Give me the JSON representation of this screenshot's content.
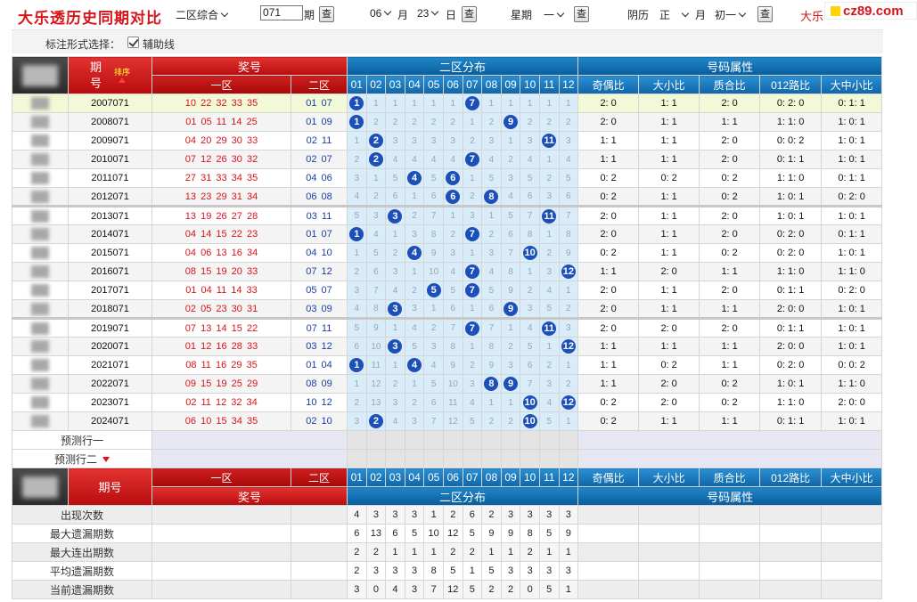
{
  "header": {
    "site_title": "大乐透历史同期对比",
    "zone_select": "二区综合",
    "period_value": "071",
    "period_label": "期",
    "query_label": "查",
    "month_value": "06",
    "month_label": "月",
    "day_value": "23",
    "day_label": "日",
    "weekday_prefix": "星期",
    "weekday_value": "一",
    "lunar_prefix": "阴历",
    "lunar_month": "正",
    "lunar_month_label": "月",
    "lunar_day": "初一",
    "red_link": "大乐",
    "logo_text": "cz89.com"
  },
  "options": {
    "label": "标注形式选择：",
    "aux_line_label": "辅助线"
  },
  "table": {
    "period_col": "期号",
    "period_col_a": "期",
    "period_col_b": "号",
    "sort_label": "排序",
    "prize_header": "奖号",
    "zone1_header": "一区",
    "zone2_header": "二区",
    "dist_header": "二区分布",
    "attr_header": "号码属性",
    "dist_cols": [
      "01",
      "02",
      "03",
      "04",
      "05",
      "06",
      "07",
      "08",
      "09",
      "10",
      "11",
      "12"
    ],
    "attr_cols": [
      "奇偶比",
      "大小比",
      "质合比",
      "012路比",
      "大中小比"
    ],
    "rows": [
      {
        "issue": "2007071",
        "zone1": "10 22 32 33 35",
        "zone2": "01 07",
        "dist": [
          "1",
          "1",
          "1",
          "1",
          "1",
          "1",
          "7",
          "1",
          "1",
          "1",
          "1",
          "1"
        ],
        "hits": [
          1,
          7
        ],
        "attrs": [
          "2: 0",
          "1: 1",
          "2: 0",
          "0: 2: 0",
          "0: 1: 1"
        ]
      },
      {
        "issue": "2008071",
        "zone1": "01 05 11 14 25",
        "zone2": "01 09",
        "dist": [
          "1",
          "2",
          "2",
          "2",
          "2",
          "2",
          "1",
          "2",
          "9",
          "2",
          "2",
          "2"
        ],
        "hits": [
          1,
          9
        ],
        "attrs": [
          "2: 0",
          "1: 1",
          "1: 1",
          "1: 1: 0",
          "1: 0: 1"
        ]
      },
      {
        "issue": "2009071",
        "zone1": "04 20 29 30 33",
        "zone2": "02 11",
        "dist": [
          "1",
          "2",
          "3",
          "3",
          "3",
          "3",
          "2",
          "3",
          "1",
          "3",
          "11",
          "3"
        ],
        "hits": [
          2,
          11
        ],
        "attrs": [
          "1: 1",
          "1: 1",
          "2: 0",
          "0: 0: 2",
          "1: 0: 1"
        ]
      },
      {
        "issue": "2010071",
        "zone1": "07 12 26 30 32",
        "zone2": "02 07",
        "dist": [
          "2",
          "2",
          "4",
          "4",
          "4",
          "4",
          "7",
          "4",
          "2",
          "4",
          "1",
          "4"
        ],
        "hits": [
          2,
          7
        ],
        "attrs": [
          "1: 1",
          "1: 1",
          "2: 0",
          "0: 1: 1",
          "1: 0: 1"
        ]
      },
      {
        "issue": "2011071",
        "zone1": "27 31 33 34 35",
        "zone2": "04 06",
        "dist": [
          "3",
          "1",
          "5",
          "4",
          "5",
          "6",
          "1",
          "5",
          "3",
          "5",
          "2",
          "5"
        ],
        "hits": [
          4,
          6
        ],
        "attrs": [
          "0: 2",
          "0: 2",
          "0: 2",
          "1: 1: 0",
          "0: 1: 1"
        ]
      },
      {
        "issue": "2012071",
        "zone1": "13 23 29 31 34",
        "zone2": "06 08",
        "dist": [
          "4",
          "2",
          "6",
          "1",
          "6",
          "6",
          "2",
          "8",
          "4",
          "6",
          "3",
          "6"
        ],
        "hits": [
          6,
          8
        ],
        "attrs": [
          "0: 2",
          "1: 1",
          "0: 2",
          "1: 0: 1",
          "0: 2: 0"
        ]
      },
      {
        "issue": "2013071",
        "zone1": "13 19 26 27 28",
        "zone2": "03 11",
        "dist": [
          "5",
          "3",
          "3",
          "2",
          "7",
          "1",
          "3",
          "1",
          "5",
          "7",
          "11",
          "7"
        ],
        "hits": [
          3,
          11
        ],
        "attrs": [
          "2: 0",
          "1: 1",
          "2: 0",
          "1: 0: 1",
          "1: 0: 1"
        ]
      },
      {
        "issue": "2014071",
        "zone1": "04 14 15 22 23",
        "zone2": "01 07",
        "dist": [
          "1",
          "4",
          "1",
          "3",
          "8",
          "2",
          "7",
          "2",
          "6",
          "8",
          "1",
          "8"
        ],
        "hits": [
          1,
          7
        ],
        "attrs": [
          "2: 0",
          "1: 1",
          "2: 0",
          "0: 2: 0",
          "0: 1: 1"
        ]
      },
      {
        "issue": "2015071",
        "zone1": "04 06 13 16 34",
        "zone2": "04 10",
        "dist": [
          "1",
          "5",
          "2",
          "4",
          "9",
          "3",
          "1",
          "3",
          "7",
          "10",
          "2",
          "9"
        ],
        "hits": [
          4,
          10
        ],
        "attrs": [
          "0: 2",
          "1: 1",
          "0: 2",
          "0: 2: 0",
          "1: 0: 1"
        ]
      },
      {
        "issue": "2016071",
        "zone1": "08 15 19 20 33",
        "zone2": "07 12",
        "dist": [
          "2",
          "6",
          "3",
          "1",
          "10",
          "4",
          "7",
          "4",
          "8",
          "1",
          "3",
          "12"
        ],
        "hits": [
          7,
          12
        ],
        "attrs": [
          "1: 1",
          "2: 0",
          "1: 1",
          "1: 1: 0",
          "1: 1: 0"
        ]
      },
      {
        "issue": "2017071",
        "zone1": "01 04 11 14 33",
        "zone2": "05 07",
        "dist": [
          "3",
          "7",
          "4",
          "2",
          "5",
          "5",
          "7",
          "5",
          "9",
          "2",
          "4",
          "1"
        ],
        "hits": [
          5,
          7
        ],
        "attrs": [
          "2: 0",
          "1: 1",
          "2: 0",
          "0: 1: 1",
          "0: 2: 0"
        ]
      },
      {
        "issue": "2018071",
        "zone1": "02 05 23 30 31",
        "zone2": "03 09",
        "dist": [
          "4",
          "8",
          "3",
          "3",
          "1",
          "6",
          "1",
          "6",
          "9",
          "3",
          "5",
          "2"
        ],
        "hits": [
          3,
          9
        ],
        "attrs": [
          "2: 0",
          "1: 1",
          "1: 1",
          "2: 0: 0",
          "1: 0: 1"
        ]
      },
      {
        "issue": "2019071",
        "zone1": "07 13 14 15 22",
        "zone2": "07 11",
        "dist": [
          "5",
          "9",
          "1",
          "4",
          "2",
          "7",
          "7",
          "7",
          "1",
          "4",
          "11",
          "3"
        ],
        "hits": [
          7,
          11
        ],
        "attrs": [
          "2: 0",
          "2: 0",
          "2: 0",
          "0: 1: 1",
          "1: 0: 1"
        ]
      },
      {
        "issue": "2020071",
        "zone1": "01 12 16 28 33",
        "zone2": "03 12",
        "dist": [
          "6",
          "10",
          "3",
          "5",
          "3",
          "8",
          "1",
          "8",
          "2",
          "5",
          "1",
          "12"
        ],
        "hits": [
          3,
          12
        ],
        "attrs": [
          "1: 1",
          "1: 1",
          "1: 1",
          "2: 0: 0",
          "1: 0: 1"
        ]
      },
      {
        "issue": "2021071",
        "zone1": "08 11 16 29 35",
        "zone2": "01 04",
        "dist": [
          "1",
          "11",
          "1",
          "4",
          "4",
          "9",
          "2",
          "9",
          "3",
          "6",
          "2",
          "1"
        ],
        "hits": [
          1,
          4
        ],
        "attrs": [
          "1: 1",
          "0: 2",
          "1: 1",
          "0: 2: 0",
          "0: 0: 2"
        ]
      },
      {
        "issue": "2022071",
        "zone1": "09 15 19 25 29",
        "zone2": "08 09",
        "dist": [
          "1",
          "12",
          "2",
          "1",
          "5",
          "10",
          "3",
          "8",
          "9",
          "7",
          "3",
          "2"
        ],
        "hits": [
          8,
          9
        ],
        "attrs": [
          "1: 1",
          "2: 0",
          "0: 2",
          "1: 0: 1",
          "1: 1: 0"
        ]
      },
      {
        "issue": "2023071",
        "zone1": "02 11 12 32 34",
        "zone2": "10 12",
        "dist": [
          "2",
          "13",
          "3",
          "2",
          "6",
          "11",
          "4",
          "1",
          "1",
          "10",
          "4",
          "12"
        ],
        "hits": [
          10,
          12
        ],
        "attrs": [
          "0: 2",
          "2: 0",
          "0: 2",
          "1: 1: 0",
          "2: 0: 0"
        ]
      },
      {
        "issue": "2024071",
        "zone1": "06 10 15 34 35",
        "zone2": "02 10",
        "dist": [
          "3",
          "2",
          "4",
          "3",
          "7",
          "12",
          "5",
          "2",
          "2",
          "10",
          "5",
          "1"
        ],
        "hits": [
          2,
          10
        ],
        "attrs": [
          "0: 2",
          "1: 1",
          "1: 1",
          "0: 1: 1",
          "1: 0: 1"
        ]
      }
    ],
    "predict_rows": [
      "预测行一",
      "预测行二"
    ],
    "stats": [
      {
        "label": "出现次数",
        "values": [
          "4",
          "3",
          "3",
          "3",
          "1",
          "2",
          "6",
          "2",
          "3",
          "3",
          "3",
          "3"
        ]
      },
      {
        "label": "最大遗漏期数",
        "values": [
          "6",
          "13",
          "6",
          "5",
          "10",
          "12",
          "5",
          "9",
          "9",
          "8",
          "5",
          "9"
        ]
      },
      {
        "label": "最大连出期数",
        "values": [
          "2",
          "2",
          "1",
          "1",
          "1",
          "2",
          "2",
          "1",
          "1",
          "2",
          "1",
          "1"
        ]
      },
      {
        "label": "平均遗漏期数",
        "values": [
          "2",
          "3",
          "3",
          "3",
          "8",
          "5",
          "1",
          "5",
          "3",
          "3",
          "3",
          "3"
        ]
      },
      {
        "label": "当前遗漏期数",
        "values": [
          "3",
          "0",
          "4",
          "3",
          "7",
          "12",
          "5",
          "2",
          "2",
          "0",
          "5",
          "1"
        ]
      }
    ]
  }
}
